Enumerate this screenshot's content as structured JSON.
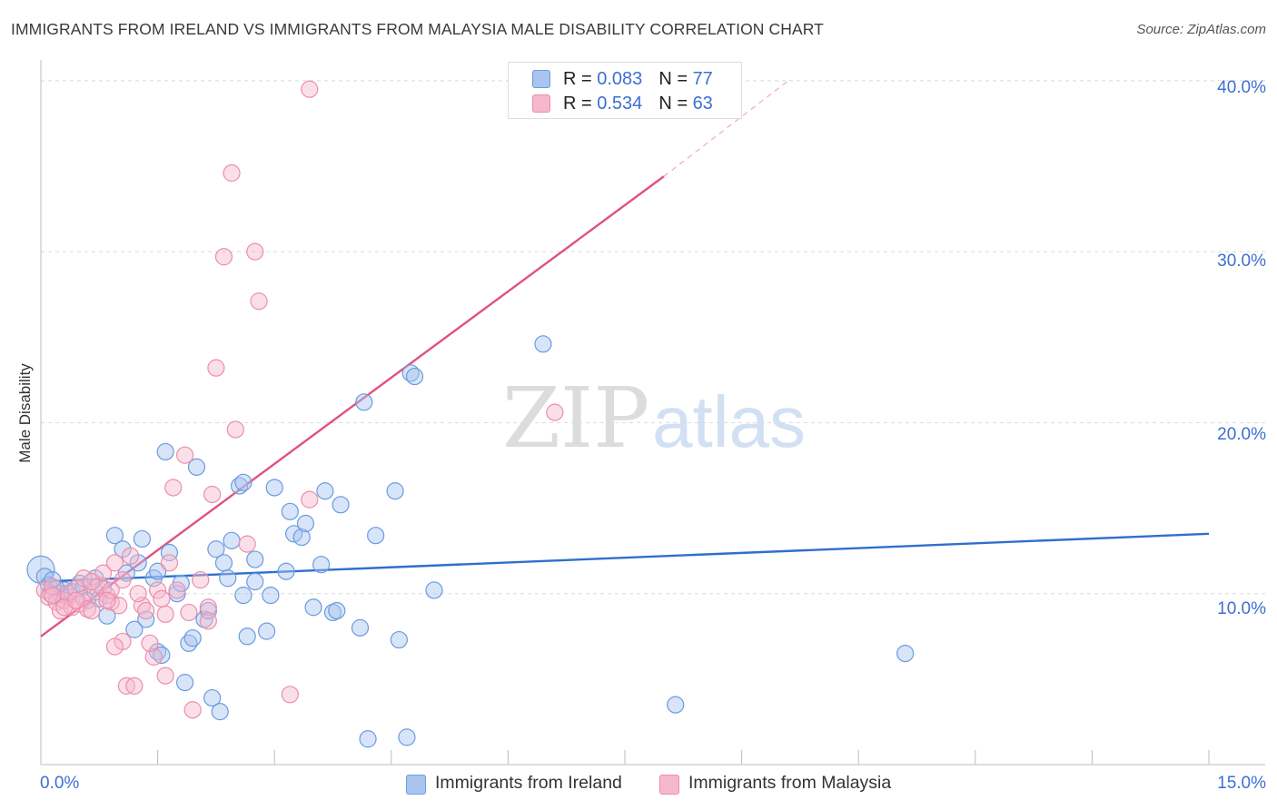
{
  "header": {
    "title": "IMMIGRANTS FROM IRELAND VS IMMIGRANTS FROM MALAYSIA MALE DISABILITY CORRELATION CHART",
    "source": "Source: ZipAtlas.com"
  },
  "legend": {
    "ireland": {
      "r_label": "R = ",
      "r_value": "0.083",
      "n_label": "N = ",
      "n_value": "77"
    },
    "malaysia": {
      "r_label": "R = ",
      "r_value": "0.534",
      "n_label": "N = ",
      "n_value": "63"
    }
  },
  "watermark": {
    "zip": "ZIP",
    "atlas": "atlas"
  },
  "colors": {
    "ireland_fill": "#a9c4ef",
    "ireland_stroke": "#6a9be0",
    "ireland_line": "#2f6fcd",
    "malaysia_fill": "#f6b8cb",
    "malaysia_stroke": "#ec8eab",
    "malaysia_line": "#e0527f",
    "tick_text": "#3d6fd1"
  },
  "chart_data": {
    "type": "scatter",
    "title": "IMMIGRANTS FROM IRELAND VS IMMIGRANTS FROM MALAYSIA MALE DISABILITY CORRELATION CHART",
    "xlabel": "",
    "ylabel": "Male Disability",
    "xlim": [
      0,
      15
    ],
    "ylim": [
      0,
      41
    ],
    "x_tick_labels": [
      {
        "value": 0,
        "label": "0.0%"
      },
      {
        "value": 15,
        "label": "15.0%"
      }
    ],
    "y_ticks": [
      {
        "value": 10,
        "label": "10.0%"
      },
      {
        "value": 20,
        "label": "20.0%"
      },
      {
        "value": 30,
        "label": "30.0%"
      },
      {
        "value": 40,
        "label": "40.0%"
      }
    ],
    "x_minor_ticks": [
      1.5,
      3.0,
      4.5,
      6.0,
      7.5,
      9.0,
      10.5,
      12.0,
      13.5,
      15.0
    ],
    "series": [
      {
        "name": "Immigrants from Ireland",
        "key": "ireland",
        "r": 0.083,
        "n": 77,
        "trend": {
          "x0": 0,
          "y0": 10.7,
          "x1": 15,
          "y1": 13.5
        },
        "points": [
          [
            0.0,
            11.4,
            "L"
          ],
          [
            0.05,
            11.0
          ],
          [
            0.1,
            10.5
          ],
          [
            0.15,
            10.8
          ],
          [
            0.2,
            10.3
          ],
          [
            0.25,
            10.0
          ],
          [
            0.3,
            10.2
          ],
          [
            0.35,
            9.8
          ],
          [
            0.4,
            10.1
          ],
          [
            0.5,
            10.6
          ],
          [
            0.55,
            10.4
          ],
          [
            0.6,
            9.6
          ],
          [
            0.7,
            10.9
          ],
          [
            0.75,
            9.7
          ],
          [
            0.8,
            10.3
          ],
          [
            0.85,
            8.7
          ],
          [
            0.95,
            13.4
          ],
          [
            1.05,
            12.6
          ],
          [
            1.1,
            11.2
          ],
          [
            1.25,
            11.8
          ],
          [
            1.3,
            13.2
          ],
          [
            1.35,
            8.5
          ],
          [
            1.2,
            7.9
          ],
          [
            1.45,
            10.9
          ],
          [
            1.5,
            11.3
          ],
          [
            1.5,
            6.6
          ],
          [
            1.55,
            6.4
          ],
          [
            1.6,
            18.3
          ],
          [
            1.65,
            12.4
          ],
          [
            1.75,
            10.0
          ],
          [
            1.8,
            10.6
          ],
          [
            1.85,
            4.8
          ],
          [
            1.9,
            7.1
          ],
          [
            1.95,
            7.4
          ],
          [
            2.0,
            17.4
          ],
          [
            2.1,
            8.5
          ],
          [
            2.15,
            9.0
          ],
          [
            2.2,
            3.9
          ],
          [
            2.25,
            12.6
          ],
          [
            2.3,
            3.1
          ],
          [
            2.35,
            11.8
          ],
          [
            2.4,
            10.9
          ],
          [
            2.45,
            13.1
          ],
          [
            2.55,
            16.3
          ],
          [
            2.6,
            16.5
          ],
          [
            2.6,
            9.9
          ],
          [
            2.65,
            7.5
          ],
          [
            2.75,
            12.0
          ],
          [
            2.75,
            10.7
          ],
          [
            2.9,
            7.8
          ],
          [
            2.95,
            9.9
          ],
          [
            3.0,
            16.2
          ],
          [
            3.15,
            11.3
          ],
          [
            3.2,
            14.8
          ],
          [
            3.25,
            13.5
          ],
          [
            3.35,
            13.3
          ],
          [
            3.4,
            14.1
          ],
          [
            3.5,
            9.2
          ],
          [
            3.6,
            11.7
          ],
          [
            3.65,
            16.0
          ],
          [
            3.75,
            8.9
          ],
          [
            3.8,
            9.0
          ],
          [
            3.85,
            15.2
          ],
          [
            4.1,
            8.0
          ],
          [
            4.15,
            21.2
          ],
          [
            4.2,
            1.5
          ],
          [
            4.3,
            13.4
          ],
          [
            4.55,
            16.0
          ],
          [
            4.6,
            7.3
          ],
          [
            4.7,
            1.6
          ],
          [
            4.75,
            22.9
          ],
          [
            4.8,
            22.7
          ],
          [
            5.05,
            10.2
          ],
          [
            6.45,
            24.6
          ],
          [
            8.15,
            3.5
          ],
          [
            11.1,
            6.5
          ],
          [
            0.12,
            10.0
          ]
        ]
      },
      {
        "name": "Immigrants from Malaysia",
        "key": "malaysia",
        "r": 0.534,
        "n": 63,
        "trend": {
          "x0": 0,
          "y0": 7.5,
          "x1": 8.0,
          "y1": 34.4,
          "dash_x1": 9.6,
          "dash_y1": 40.0
        },
        "points": [
          [
            0.05,
            10.2
          ],
          [
            0.1,
            9.8
          ],
          [
            0.15,
            10.4
          ],
          [
            0.2,
            9.5
          ],
          [
            0.25,
            9.0
          ],
          [
            0.3,
            9.6
          ],
          [
            0.35,
            10.0
          ],
          [
            0.4,
            9.2
          ],
          [
            0.45,
            10.3
          ],
          [
            0.5,
            9.4
          ],
          [
            0.55,
            9.7
          ],
          [
            0.6,
            9.1
          ],
          [
            0.65,
            9.0
          ],
          [
            0.7,
            10.1
          ],
          [
            0.75,
            10.5
          ],
          [
            0.8,
            11.2
          ],
          [
            0.85,
            9.9
          ],
          [
            0.9,
            9.5
          ],
          [
            0.95,
            11.8
          ],
          [
            1.0,
            9.3
          ],
          [
            1.05,
            10.8
          ],
          [
            1.05,
            7.2
          ],
          [
            0.95,
            6.9
          ],
          [
            1.1,
            4.6
          ],
          [
            1.2,
            4.6
          ],
          [
            1.3,
            9.3
          ],
          [
            1.35,
            9.0
          ],
          [
            1.45,
            6.3
          ],
          [
            1.5,
            10.2
          ],
          [
            1.6,
            8.8
          ],
          [
            1.6,
            5.2
          ],
          [
            1.65,
            11.8
          ],
          [
            1.7,
            16.2
          ],
          [
            1.85,
            18.1
          ],
          [
            1.9,
            8.9
          ],
          [
            1.95,
            3.2
          ],
          [
            2.05,
            10.8
          ],
          [
            2.15,
            9.2
          ],
          [
            2.2,
            15.8
          ],
          [
            2.25,
            23.2
          ],
          [
            2.35,
            29.7
          ],
          [
            2.45,
            34.6
          ],
          [
            2.5,
            19.6
          ],
          [
            2.65,
            12.9
          ],
          [
            2.75,
            30.0
          ],
          [
            2.8,
            27.1
          ],
          [
            3.2,
            4.1
          ],
          [
            3.45,
            15.5
          ],
          [
            3.45,
            39.5
          ],
          [
            0.9,
            10.2
          ],
          [
            1.15,
            12.2
          ],
          [
            1.4,
            7.1
          ],
          [
            6.6,
            20.6
          ],
          [
            0.3,
            9.2
          ],
          [
            0.55,
            10.9
          ],
          [
            1.25,
            10.0
          ],
          [
            1.75,
            10.2
          ],
          [
            2.15,
            8.4
          ],
          [
            0.15,
            9.9
          ],
          [
            0.45,
            9.6
          ],
          [
            0.65,
            10.7
          ],
          [
            0.85,
            9.6
          ],
          [
            1.55,
            9.7
          ]
        ]
      }
    ]
  },
  "bottom_legend": {
    "ireland_label": "Immigrants from Ireland",
    "malaysia_label": "Immigrants from Malaysia"
  }
}
